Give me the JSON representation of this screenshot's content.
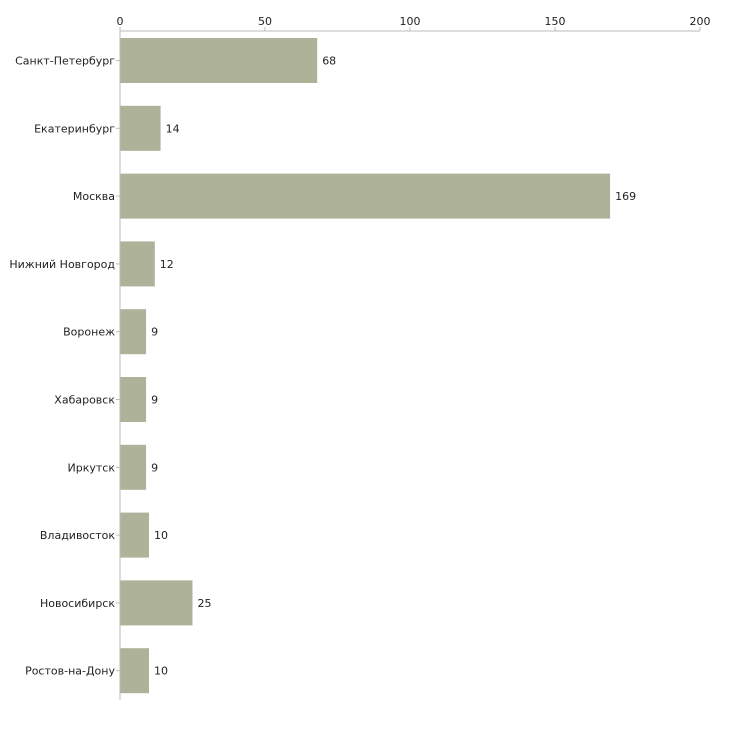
{
  "chart_data": {
    "type": "bar",
    "orientation": "horizontal",
    "title": "",
    "xlabel": "",
    "ylabel": "",
    "xlim": [
      0,
      200
    ],
    "x_ticks": [
      0,
      50,
      100,
      150,
      200
    ],
    "grid": false,
    "categories": [
      "Санкт-Петербург",
      "Екатеринбург",
      "Москва",
      "Нижний Новгород",
      "Воронеж",
      "Хабаровск",
      "Иркутск",
      "Владивосток",
      "Новосибирск",
      "Ростов-на-Дону"
    ],
    "values": [
      68,
      14,
      169,
      12,
      9,
      9,
      9,
      10,
      25,
      10
    ],
    "bar_color": "#adb298",
    "axis_color": "#bbbbbb",
    "text_color": "#222222"
  }
}
